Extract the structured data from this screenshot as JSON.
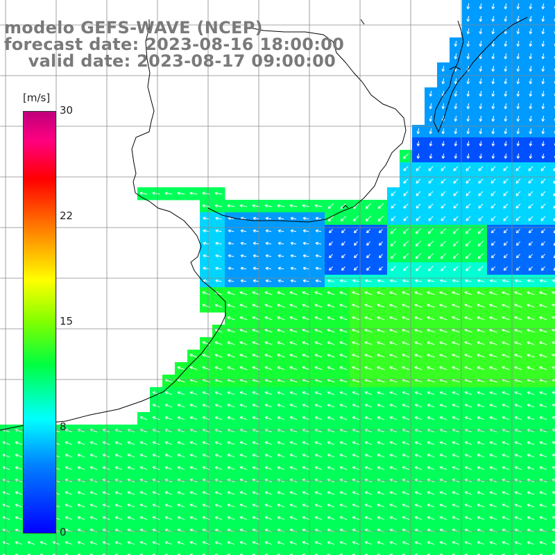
{
  "title": {
    "line1": "modelo GEFS-WAVE (NCEP)",
    "line2": "forecast date: 2023-08-16 18:00:00",
    "line3": "    valid date: 2023-08-17 09:00:00"
  },
  "colorbar": {
    "unit": "[m/s]",
    "ticks": [
      "30",
      "22",
      "15",
      "8",
      "0"
    ],
    "tick_values": [
      30,
      22,
      15,
      8,
      0
    ],
    "min": 0,
    "max": 30,
    "colors": [
      "#0000ff",
      "#0080ff",
      "#00ffff",
      "#00ff40",
      "#80ff00",
      "#ffff00",
      "#ff8000",
      "#ff0000",
      "#ff0080",
      "#c0007a"
    ]
  },
  "map": {
    "land_color": "#ffffff",
    "grid_color": "#888888",
    "coastline_color": "#000000",
    "arrow_color": "#ffffff"
  }
}
